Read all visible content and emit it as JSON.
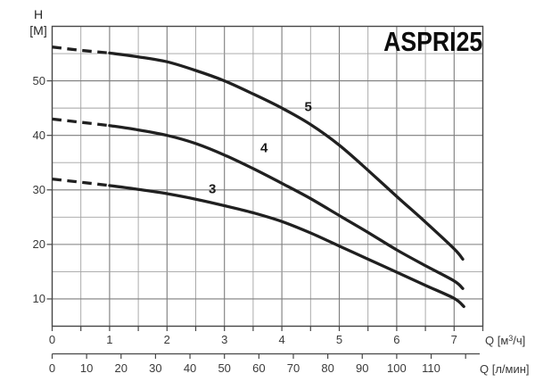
{
  "title": "ASPRI25",
  "y_axis": {
    "name": "H",
    "unit": "[М]",
    "tick_values": [
      10,
      20,
      30,
      40,
      50
    ]
  },
  "x_axis": {
    "tick_values": [
      0,
      1,
      2,
      3,
      4,
      5,
      6,
      7
    ],
    "label_prefix": "Q [м",
    "label_sup": "3",
    "label_suffix": "/ч]"
  },
  "x2_axis": {
    "tick_values": [
      0,
      10,
      20,
      30,
      40,
      50,
      60,
      70,
      80,
      90,
      100,
      110
    ],
    "label": "Q [л/мин]"
  },
  "colors": {
    "curve": "#202020",
    "grid_minor": "#a2a2a2",
    "grid_major": "#7d7d7d",
    "border": "#474747",
    "tick_text": "#3a3a3a",
    "title_text": "#0d0d0d",
    "background": "#ffffff"
  },
  "chart_data": {
    "type": "line",
    "title": "ASPRI25",
    "ylabel": "H [М]",
    "xlabel": "Q [м³/ч]",
    "x2label": "Q [л/мин]",
    "xlim": [
      0,
      7.5
    ],
    "ylim": [
      5,
      60
    ],
    "x_grid_step": 0.5,
    "y_grid_step": 5,
    "x2_unit_per_x": 16.6667,
    "x2_tick_step": 10,
    "grid": true,
    "legend": "curve numbers 3, 4, 5 printed beside curves",
    "dash_until": 1.0,
    "series": [
      {
        "name": "5",
        "label_at": [
          4.46,
          45.2
        ],
        "points": [
          [
            0,
            56.2
          ],
          [
            0.5,
            55.6
          ],
          [
            1,
            55.1
          ],
          [
            1.5,
            54.4
          ],
          [
            2,
            53.5
          ],
          [
            2.5,
            51.9
          ],
          [
            3,
            50
          ],
          [
            3.5,
            47.6
          ],
          [
            4,
            45
          ],
          [
            4.5,
            42
          ],
          [
            5,
            38.2
          ],
          [
            5.5,
            33.6
          ],
          [
            6,
            28.8
          ],
          [
            6.5,
            24.1
          ],
          [
            7,
            19.2
          ],
          [
            7.15,
            17.3
          ]
        ]
      },
      {
        "name": "4",
        "label_at": [
          3.69,
          37.6
        ],
        "points": [
          [
            0,
            43
          ],
          [
            0.5,
            42.4
          ],
          [
            1,
            41.8
          ],
          [
            1.5,
            41
          ],
          [
            2,
            40
          ],
          [
            2.5,
            38.5
          ],
          [
            3,
            36.4
          ],
          [
            3.5,
            33.9
          ],
          [
            4,
            31.2
          ],
          [
            4.5,
            28.4
          ],
          [
            5,
            25.3
          ],
          [
            5.5,
            22.2
          ],
          [
            6,
            19
          ],
          [
            6.5,
            16.1
          ],
          [
            7,
            13.3
          ],
          [
            7.15,
            11.9
          ]
        ]
      },
      {
        "name": "3",
        "label_at": [
          2.79,
          30.2
        ],
        "points": [
          [
            0,
            32
          ],
          [
            0.5,
            31.4
          ],
          [
            1,
            30.8
          ],
          [
            1.5,
            30.1
          ],
          [
            2,
            29.3
          ],
          [
            2.5,
            28.3
          ],
          [
            3,
            27.1
          ],
          [
            3.5,
            25.8
          ],
          [
            4,
            24.2
          ],
          [
            4.5,
            22.1
          ],
          [
            5,
            19.7
          ],
          [
            5.5,
            17.3
          ],
          [
            6,
            14.9
          ],
          [
            6.5,
            12.5
          ],
          [
            7,
            10.1
          ],
          [
            7.17,
            8.6
          ]
        ]
      }
    ]
  }
}
